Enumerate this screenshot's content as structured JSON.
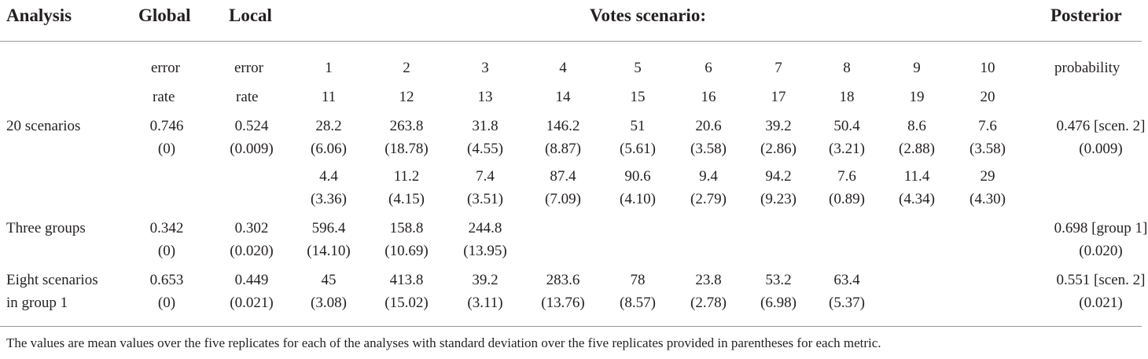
{
  "header": {
    "analysis": "Analysis",
    "global": "Global",
    "local": "Local",
    "votes": "Votes scenario:",
    "posterior": "Posterior"
  },
  "subheader": {
    "global_line1": "error",
    "global_line2": "rate",
    "local_line1": "error",
    "local_line2": "rate",
    "scen_line1": [
      "1",
      "2",
      "3",
      "4",
      "5",
      "6",
      "7",
      "8",
      "9",
      "10"
    ],
    "scen_line2": [
      "11",
      "12",
      "13",
      "14",
      "15",
      "16",
      "17",
      "18",
      "19",
      "20"
    ],
    "posterior_line1": "probability"
  },
  "rows": [
    {
      "label": [
        "20 scenarios"
      ],
      "global": [
        "0.746",
        "(0)"
      ],
      "local": [
        "0.524",
        "(0.009)"
      ],
      "votes": [
        [
          "28.2",
          "(6.06)"
        ],
        [
          "263.8",
          "(18.78)"
        ],
        [
          "31.8",
          "(4.55)"
        ],
        [
          "146.2",
          "(8.87)"
        ],
        [
          "51",
          "(5.61)"
        ],
        [
          "20.6",
          "(3.58)"
        ],
        [
          "39.2",
          "(2.86)"
        ],
        [
          "50.4",
          "(3.21)"
        ],
        [
          "8.6",
          "(2.88)"
        ],
        [
          "7.6",
          "(3.58)"
        ]
      ],
      "votes2": [
        [
          "4.4",
          "(3.36)"
        ],
        [
          "11.2",
          "(4.15)"
        ],
        [
          "7.4",
          "(3.51)"
        ],
        [
          "87.4",
          "(7.09)"
        ],
        [
          "90.6",
          "(4.10)"
        ],
        [
          "9.4",
          "(2.79)"
        ],
        [
          "94.2",
          "(9.23)"
        ],
        [
          "7.6",
          "(0.89)"
        ],
        [
          "11.4",
          "(4.34)"
        ],
        [
          "29",
          "(4.30)"
        ]
      ],
      "posterior": [
        "0.476 [scen. 2]",
        "(0.009)"
      ]
    },
    {
      "label": [
        "Three groups"
      ],
      "global": [
        "0.342",
        "(0)"
      ],
      "local": [
        "0.302",
        "(0.020)"
      ],
      "votes": [
        [
          "596.4",
          "(14.10)"
        ],
        [
          "158.8",
          "(10.69)"
        ],
        [
          "244.8",
          "(13.95)"
        ]
      ],
      "posterior": [
        "0.698 [group 1]",
        "(0.020)"
      ]
    },
    {
      "label": [
        "Eight scenarios",
        "in group 1"
      ],
      "global": [
        "0.653",
        "(0)"
      ],
      "local": [
        "0.449",
        "(0.021)"
      ],
      "votes": [
        [
          "45",
          "(3.08)"
        ],
        [
          "413.8",
          "(15.02)"
        ],
        [
          "39.2",
          "(3.11)"
        ],
        [
          "283.6",
          "(13.76)"
        ],
        [
          "78",
          "(8.57)"
        ],
        [
          "23.8",
          "(2.78)"
        ],
        [
          "53.2",
          "(6.98)"
        ],
        [
          "63.4",
          "(5.37)"
        ]
      ],
      "posterior": [
        "0.551 [scen. 2]",
        "(0.021)"
      ]
    }
  ],
  "footnote": "The values are mean values over the five replicates for each of the analyses with standard deviation over the five replicates provided in parentheses for each metric."
}
